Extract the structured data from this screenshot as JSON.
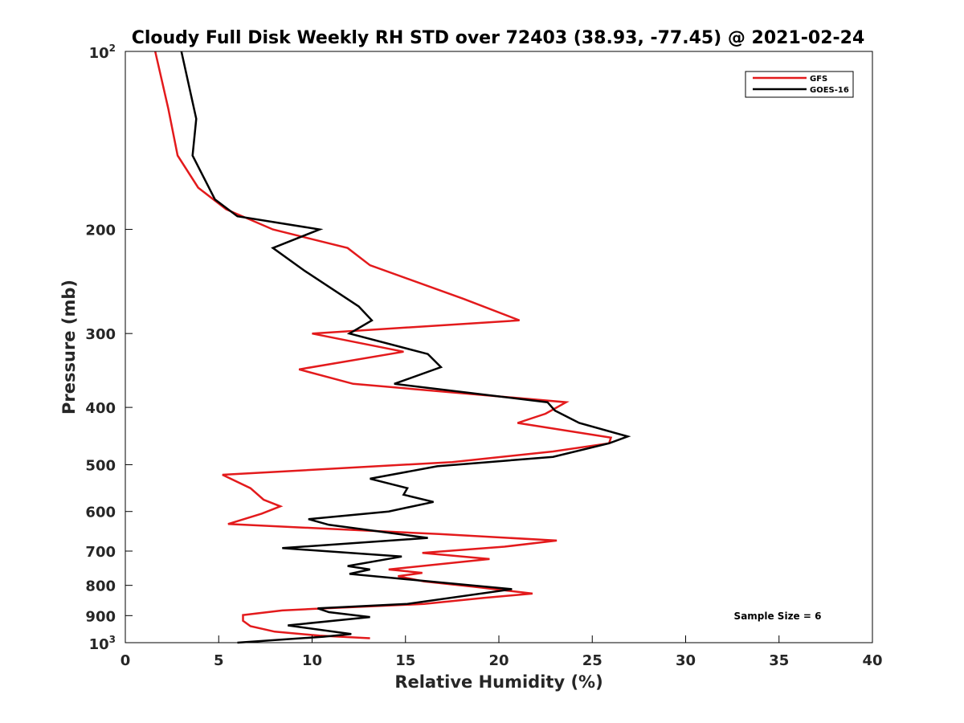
{
  "chart_data": {
    "type": "line",
    "title": "Cloudy Full Disk Weekly RH STD over 72403 (38.93, -77.45) @ 2021-02-24",
    "xlabel": "Relative Humidity (%)",
    "ylabel": "Pressure (mb)",
    "xlim": [
      0,
      40
    ],
    "ylim": [
      100,
      1000
    ],
    "y_scale": "log",
    "y_reversed": true,
    "grid": false,
    "legend_position": "top-right",
    "x_ticks": [
      "0",
      "5",
      "10",
      "15",
      "20",
      "25",
      "30",
      "35",
      "40"
    ],
    "y_ticks": [
      {
        "value": 100,
        "base": "10",
        "exp": "2"
      },
      {
        "value": 200,
        "label": "200"
      },
      {
        "value": 300,
        "label": "300"
      },
      {
        "value": 400,
        "label": "400"
      },
      {
        "value": 500,
        "label": "500"
      },
      {
        "value": 600,
        "label": "600"
      },
      {
        "value": 700,
        "label": "700"
      },
      {
        "value": 800,
        "label": "800"
      },
      {
        "value": 900,
        "label": "900"
      },
      {
        "value": 1000,
        "base": "10",
        "exp": "3"
      }
    ],
    "series": [
      {
        "name": "GFS",
        "color": "#e31a1c",
        "points": [
          [
            1.6,
            100
          ],
          [
            2.3,
            125
          ],
          [
            2.8,
            150
          ],
          [
            3.9,
            170
          ],
          [
            5.4,
            185
          ],
          [
            7.9,
            200
          ],
          [
            11.9,
            215
          ],
          [
            13.1,
            230
          ],
          [
            18.1,
            262
          ],
          [
            21.1,
            285
          ],
          [
            10.0,
            300
          ],
          [
            14.9,
            322
          ],
          [
            9.3,
            345
          ],
          [
            12.2,
            365
          ],
          [
            23.6,
            392
          ],
          [
            22.5,
            410
          ],
          [
            21.0,
            425
          ],
          [
            26.0,
            450
          ],
          [
            25.9,
            460
          ],
          [
            22.9,
            475
          ],
          [
            17.5,
            495
          ],
          [
            5.2,
            520
          ],
          [
            6.7,
            548
          ],
          [
            7.4,
            573
          ],
          [
            8.3,
            588
          ],
          [
            7.3,
            605
          ],
          [
            5.5,
            630
          ],
          [
            16.8,
            655
          ],
          [
            23.1,
            672
          ],
          [
            20.3,
            688
          ],
          [
            15.9,
            705
          ],
          [
            19.5,
            722
          ],
          [
            14.1,
            752
          ],
          [
            15.9,
            762
          ],
          [
            14.6,
            772
          ],
          [
            16.0,
            788
          ],
          [
            18.8,
            805
          ],
          [
            21.8,
            826
          ],
          [
            19.2,
            840
          ],
          [
            16.0,
            860
          ],
          [
            10.0,
            877
          ],
          [
            8.4,
            882
          ],
          [
            6.3,
            898
          ],
          [
            6.3,
            918
          ],
          [
            6.7,
            938
          ],
          [
            8.0,
            958
          ],
          [
            10.4,
            973
          ],
          [
            13.1,
            983
          ]
        ]
      },
      {
        "name": "GOES-16",
        "color": "#000000",
        "points": [
          [
            3.0,
            100
          ],
          [
            3.8,
            130
          ],
          [
            3.6,
            150
          ],
          [
            4.8,
            178
          ],
          [
            6.0,
            190
          ],
          [
            10.4,
            200
          ],
          [
            7.9,
            215
          ],
          [
            9.6,
            235
          ],
          [
            12.5,
            270
          ],
          [
            13.2,
            285
          ],
          [
            12.0,
            300
          ],
          [
            16.2,
            325
          ],
          [
            16.9,
            342
          ],
          [
            14.4,
            365
          ],
          [
            22.6,
            392
          ],
          [
            23.0,
            405
          ],
          [
            24.3,
            425
          ],
          [
            26.9,
            448
          ],
          [
            25.9,
            460
          ],
          [
            22.9,
            485
          ],
          [
            16.7,
            503
          ],
          [
            13.1,
            528
          ],
          [
            15.1,
            548
          ],
          [
            14.9,
            562
          ],
          [
            16.5,
            578
          ],
          [
            14.1,
            600
          ],
          [
            9.8,
            618
          ],
          [
            10.9,
            632
          ],
          [
            16.2,
            665
          ],
          [
            8.4,
            692
          ],
          [
            14.8,
            715
          ],
          [
            11.9,
            742
          ],
          [
            13.1,
            752
          ],
          [
            12.0,
            765
          ],
          [
            20.7,
            812
          ],
          [
            15.1,
            860
          ],
          [
            10.3,
            875
          ],
          [
            10.9,
            888
          ],
          [
            13.1,
            905
          ],
          [
            8.7,
            935
          ],
          [
            12.1,
            967
          ],
          [
            10.6,
            977
          ],
          [
            6.0,
            1000
          ]
        ]
      }
    ],
    "annotations": [
      "Sample Size = 6"
    ]
  }
}
